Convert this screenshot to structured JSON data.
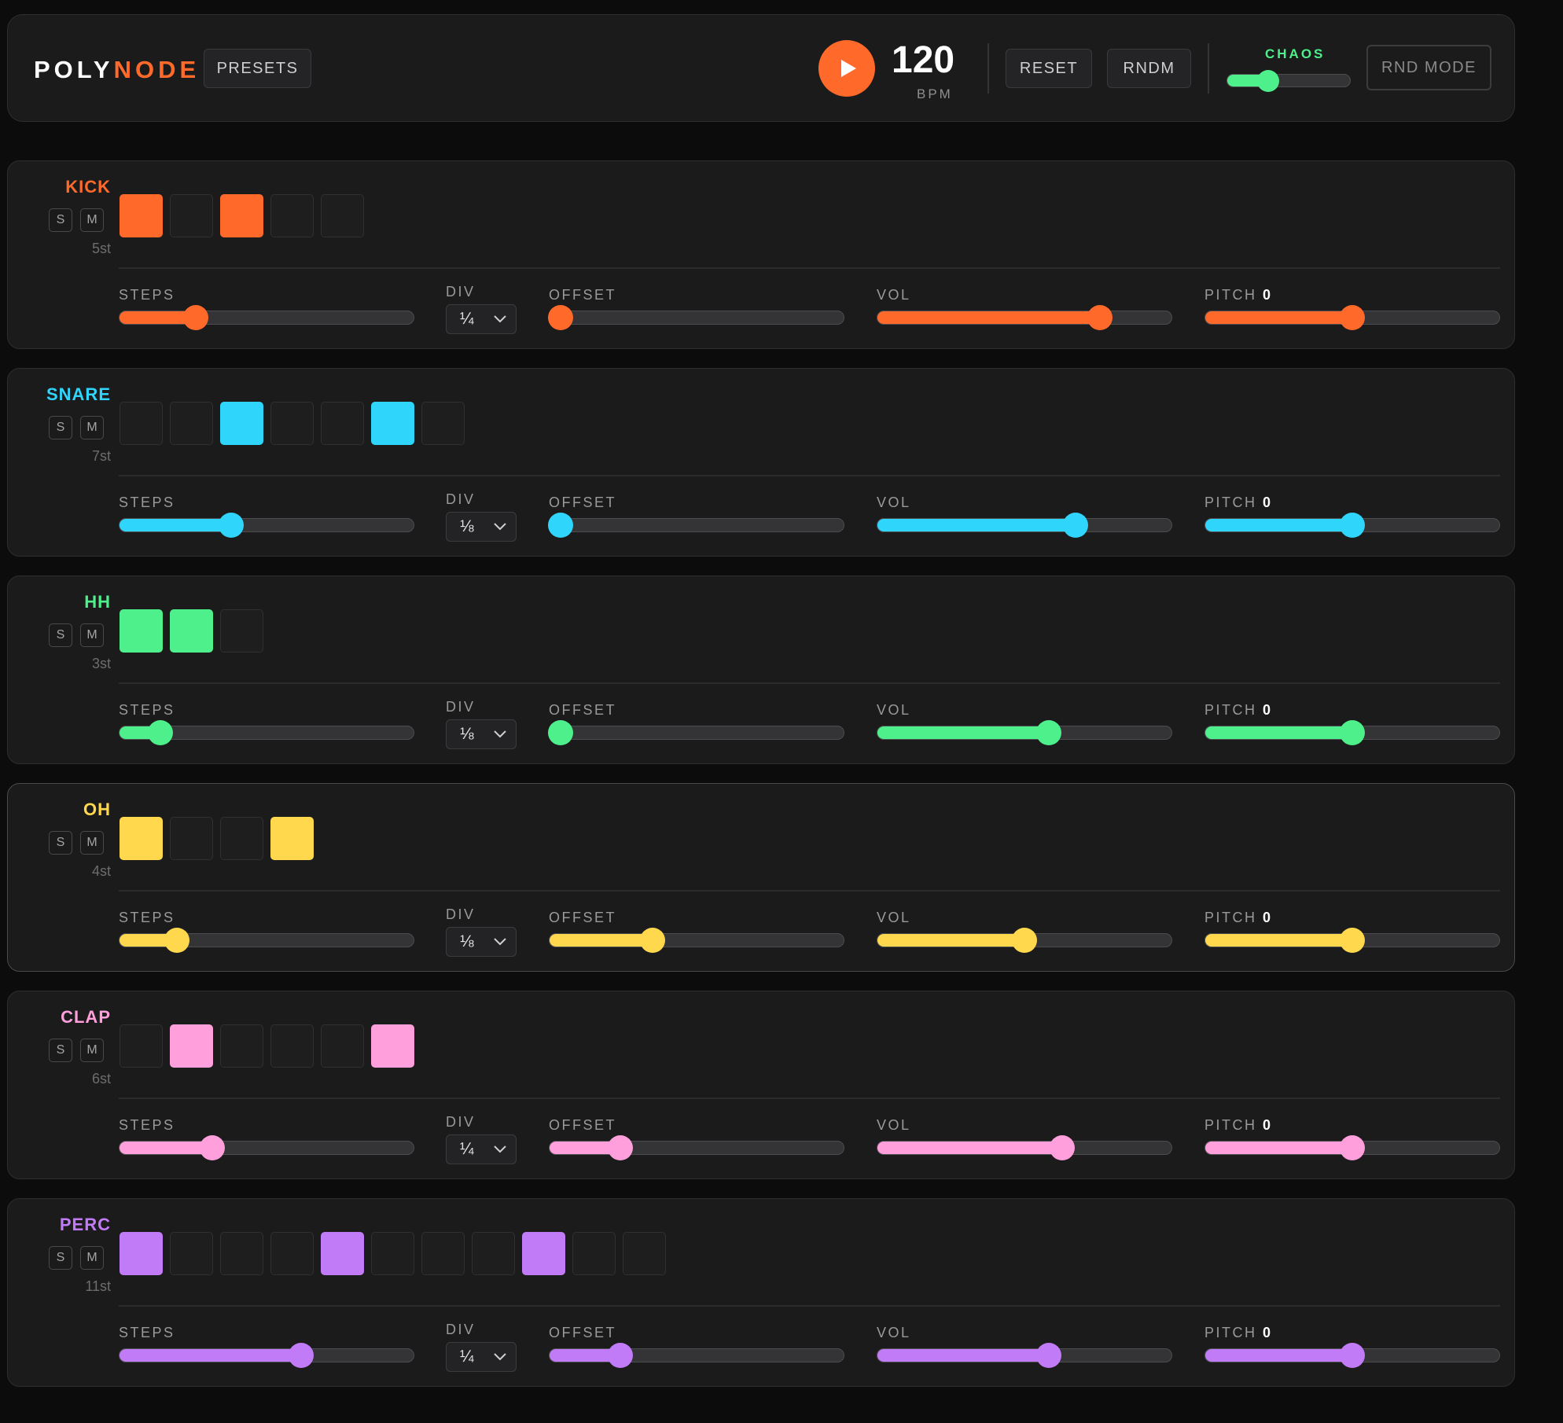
{
  "app": {
    "logo_part1": "POLY",
    "logo_part2": "NODE",
    "accent_color": "#ff6a2b"
  },
  "toolbar": {
    "presets_label": "PRESETS",
    "play_icon": "play-icon",
    "bpm_value": "120",
    "bpm_label": "BPM",
    "reset_label": "RESET",
    "random_label": "RNDM",
    "chaos_label": "CHAOS",
    "chaos_value": 0.3,
    "rnd_mode_label": "RND MODE"
  },
  "param_labels": {
    "steps": "STEPS",
    "div": "DIV",
    "offset": "OFFSET",
    "vol": "VOL",
    "pitch": "PITCH"
  },
  "tracks": [
    {
      "name": "KICK",
      "color": "#ff6a2b",
      "step_count_label": "5st",
      "active_steps": [
        0,
        2
      ],
      "steps_value": 0.24,
      "div": "¼",
      "offset_value": 0.0,
      "vol_value": 0.78,
      "pitch_value": "0",
      "pitch_level": 0.5,
      "solo_label": "S",
      "mute_label": "M"
    },
    {
      "name": "SNARE",
      "color": "#2fd5fb",
      "step_count_label": "7st",
      "active_steps": [
        2,
        5
      ],
      "steps_value": 0.37,
      "div": "⅛",
      "offset_value": 0.0,
      "vol_value": 0.69,
      "pitch_value": "0",
      "pitch_level": 0.5,
      "solo_label": "S",
      "mute_label": "M"
    },
    {
      "name": "HH",
      "color": "#4ef08b",
      "step_count_label": "3st",
      "active_steps": [
        0,
        1
      ],
      "steps_value": 0.11,
      "div": "⅛",
      "offset_value": 0.0,
      "vol_value": 0.59,
      "pitch_value": "0",
      "pitch_level": 0.5,
      "solo_label": "S",
      "mute_label": "M"
    },
    {
      "name": "OH",
      "color": "#ffd84d",
      "step_count_label": "4st",
      "active_steps": [
        0,
        3
      ],
      "steps_value": 0.17,
      "div": "⅛",
      "offset_value": 0.34,
      "vol_value": 0.5,
      "pitch_value": "0",
      "pitch_level": 0.5,
      "solo_label": "S",
      "mute_label": "M"
    },
    {
      "name": "CLAP",
      "color": "#ff9fdc",
      "step_count_label": "6st",
      "active_steps": [
        1,
        5
      ],
      "steps_value": 0.3,
      "div": "¼",
      "offset_value": 0.22,
      "vol_value": 0.64,
      "pitch_value": "0",
      "pitch_level": 0.5,
      "solo_label": "S",
      "mute_label": "M"
    },
    {
      "name": "PERC",
      "color": "#c27bf7",
      "step_count_label": "11st",
      "active_steps": [
        0,
        4,
        8
      ],
      "steps_value": 0.63,
      "div": "¼",
      "offset_value": 0.22,
      "vol_value": 0.59,
      "pitch_value": "0",
      "pitch_level": 0.5,
      "solo_label": "S",
      "mute_label": "M"
    }
  ]
}
